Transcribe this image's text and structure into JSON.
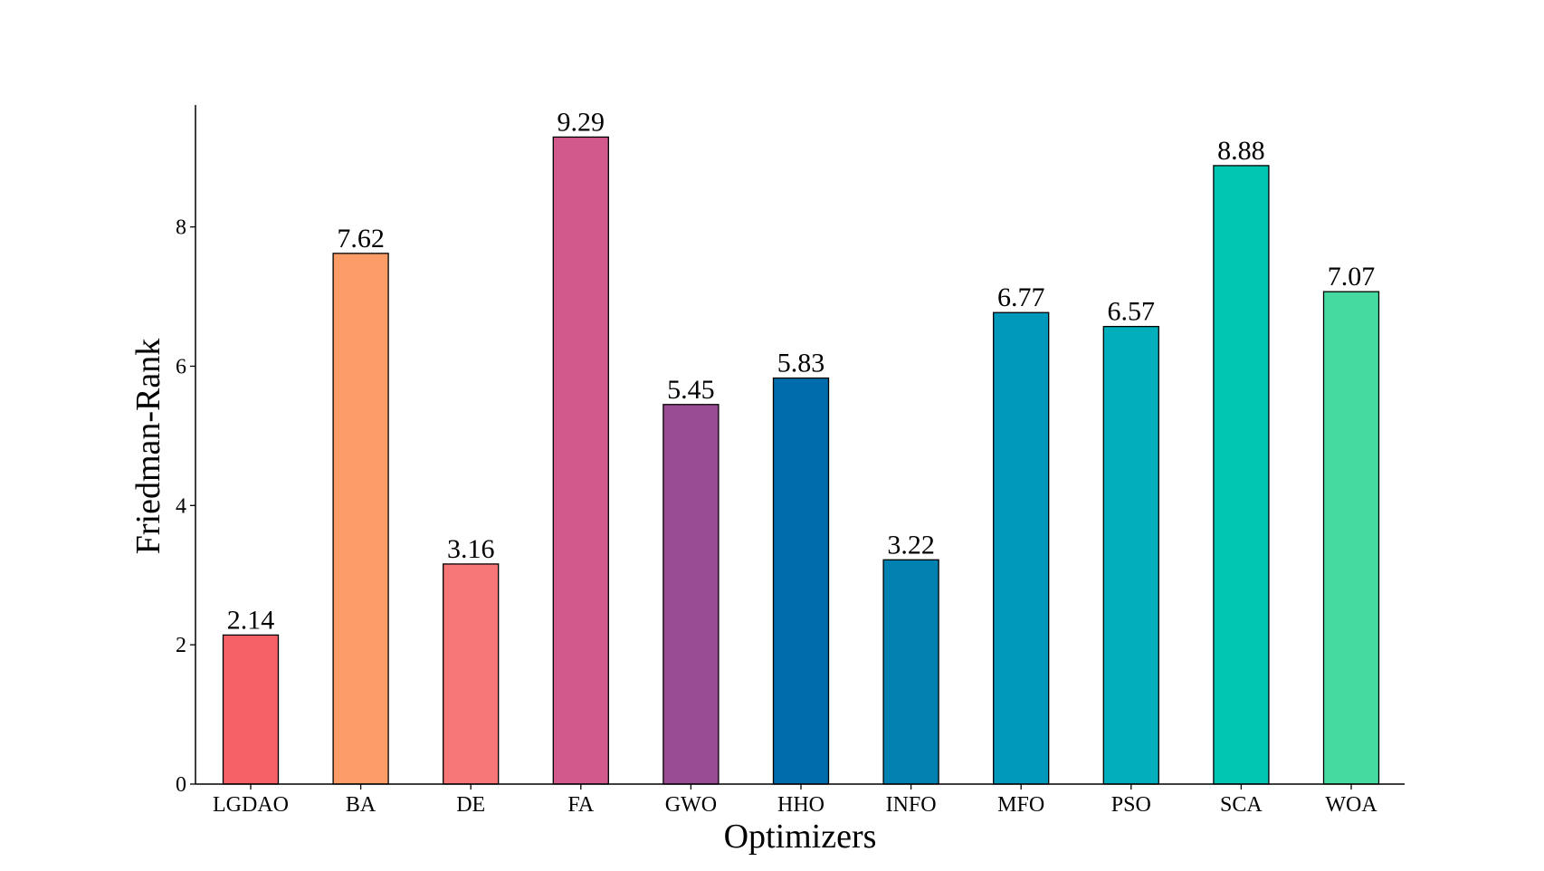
{
  "chart_data": {
    "type": "bar",
    "title": "",
    "xlabel": "Optimizers",
    "ylabel": "Friedman-Rank",
    "categories": [
      "LGDAO",
      "BA",
      "DE",
      "FA",
      "GWO",
      "HHO",
      "INFO",
      "MFO",
      "PSO",
      "SCA",
      "WOA"
    ],
    "values": [
      2.14,
      7.62,
      3.16,
      9.29,
      5.45,
      5.83,
      3.22,
      6.77,
      6.57,
      8.88,
      7.07
    ],
    "value_labels": [
      "2.14",
      "7.62",
      "3.16",
      "9.29",
      "5.45",
      "5.83",
      "3.22",
      "6.77",
      "6.57",
      "8.88",
      "7.07"
    ],
    "colors": [
      "#F46064",
      "#FC9D68",
      "#F77779",
      "#D1598C",
      "#9A4C93",
      "#006CAB",
      "#0081B0",
      "#0098BB",
      "#00AFBB",
      "#00C6B2",
      "#45DBA0"
    ],
    "ylim": [
      0,
      9.75
    ],
    "yticks": [
      0,
      2,
      4,
      6,
      8
    ],
    "ytick_labels": [
      "0",
      "2",
      "4",
      "6",
      "8"
    ],
    "grid": false,
    "legend": "none"
  }
}
